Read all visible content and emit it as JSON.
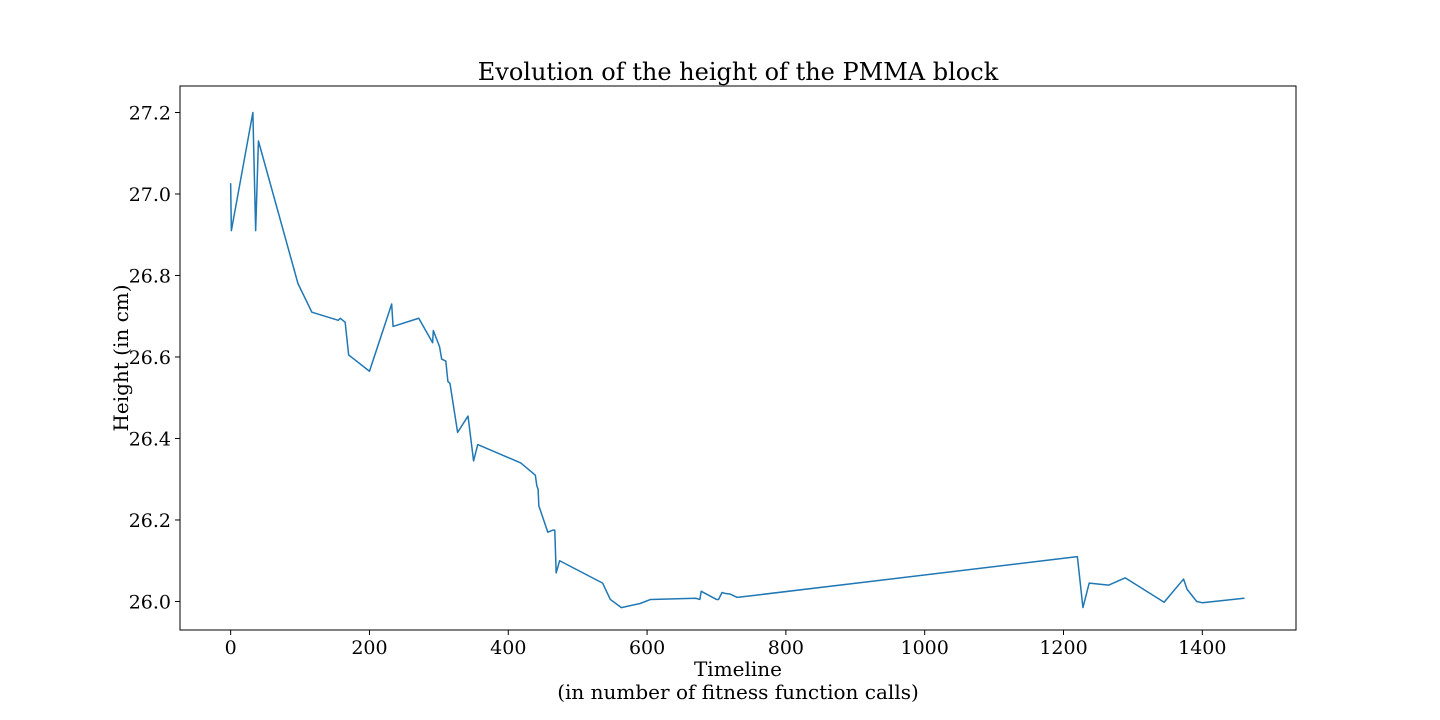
{
  "chart_data": {
    "type": "line",
    "title": "Evolution of the height of the PMMA block",
    "xlabel": "Timeline",
    "xlabel_sub": "(in number of fitness function calls)",
    "ylabel": "Height (in cm)",
    "xlim": [
      -73,
      1535
    ],
    "ylim": [
      25.93,
      27.265
    ],
    "xticks": [
      0,
      200,
      400,
      600,
      800,
      1000,
      1200,
      1400
    ],
    "xtick_labels": [
      "0",
      "200",
      "400",
      "600",
      "800",
      "1000",
      "1200",
      "1400"
    ],
    "yticks": [
      26.0,
      26.2,
      26.4,
      26.6,
      26.8,
      27.0,
      27.2
    ],
    "ytick_labels": [
      "26.0",
      "26.2",
      "26.4",
      "26.6",
      "26.8",
      "27.0",
      "27.2"
    ],
    "grid": false,
    "legend": "none",
    "series": [
      {
        "color": "#1f77b4",
        "x": [
          0,
          1,
          32,
          36,
          40,
          97,
          117,
          155,
          158,
          165,
          170,
          200,
          232,
          234,
          271,
          291,
          292,
          301,
          304,
          310,
          313,
          316,
          327,
          342,
          350,
          356,
          418,
          439,
          441,
          443,
          444,
          457,
          464,
          467,
          469,
          474,
          536,
          547,
          563,
          590,
          605,
          670,
          676,
          678,
          700,
          703,
          708,
          712,
          720,
          730,
          1220,
          1228,
          1237,
          1265,
          1289,
          1345,
          1373,
          1378,
          1392,
          1400,
          1460
        ],
        "y": [
          27.025,
          26.91,
          27.2,
          26.91,
          27.13,
          26.78,
          26.71,
          26.69,
          26.695,
          26.685,
          26.605,
          26.565,
          26.73,
          26.675,
          26.695,
          26.635,
          26.665,
          26.625,
          26.595,
          26.59,
          26.54,
          26.535,
          26.415,
          26.455,
          26.345,
          26.385,
          26.34,
          26.31,
          26.285,
          26.275,
          26.235,
          26.17,
          26.175,
          26.175,
          26.07,
          26.1,
          26.045,
          26.005,
          25.985,
          25.995,
          26.005,
          26.008,
          26.005,
          26.025,
          26.005,
          26.005,
          26.022,
          26.02,
          26.018,
          26.01,
          26.11,
          25.985,
          26.045,
          26.04,
          26.058,
          25.998,
          26.055,
          26.03,
          26.0,
          25.997,
          26.008
        ]
      }
    ]
  }
}
